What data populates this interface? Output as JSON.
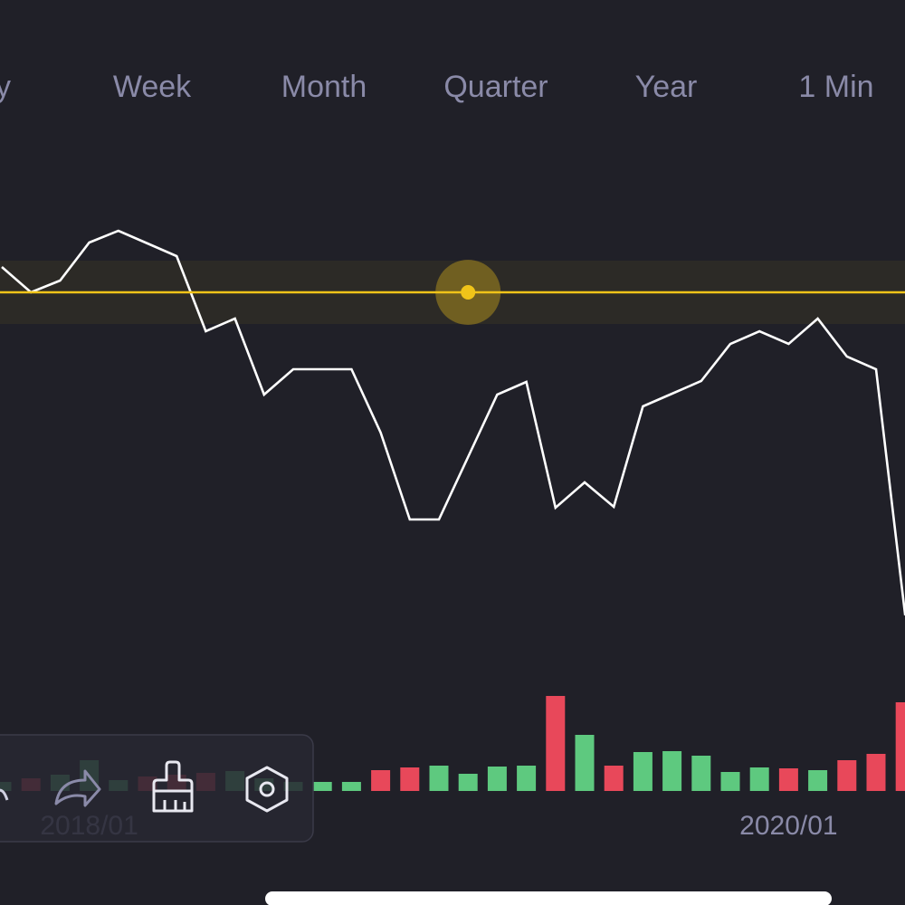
{
  "tabs": [
    "y",
    "Week",
    "Month",
    "Quarter",
    "Year",
    "1 Min"
  ],
  "chart_data": {
    "type": "line",
    "categories": [
      null,
      null,
      null,
      "2018/01",
      null,
      null,
      null,
      null,
      null,
      null,
      null,
      null,
      null,
      null,
      null,
      null,
      null,
      null,
      null,
      null,
      null,
      null,
      null,
      null,
      null,
      null,
      null,
      "2020/01",
      null,
      null,
      null,
      null
    ],
    "values": [
      405,
      377,
      390,
      432,
      445,
      431,
      417,
      334,
      348,
      264,
      292,
      292,
      292,
      222,
      126,
      126,
      195,
      264,
      278,
      139,
      167,
      140,
      251,
      265,
      279,
      320,
      334,
      320,
      348,
      306,
      292,
      20
    ],
    "color": "#ffffff",
    "ylim": [
      0,
      500
    ],
    "crosshair": {
      "index": 16,
      "value": 377,
      "color": "#f0c419"
    },
    "volume": {
      "values": [
        10,
        14,
        18,
        34,
        12,
        16,
        18,
        20,
        22,
        14,
        10,
        10,
        10,
        23,
        26,
        28,
        19,
        27,
        28,
        105,
        62,
        28,
        43,
        44,
        39,
        21,
        26,
        25,
        23,
        34,
        41,
        98
      ],
      "colors": [
        "#5ec97f",
        "#e8485a",
        "#5ec97f",
        "#5ec97f",
        "#5ec97f",
        "#e8485a",
        "#e8485a",
        "#e8485a",
        "#5ec97f",
        "#5ec97f",
        "#5ec97f",
        "#5ec97f",
        "#5ec97f",
        "#e8485a",
        "#e8485a",
        "#5ec97f",
        "#5ec97f",
        "#5ec97f",
        "#5ec97f",
        "#e8485a",
        "#5ec97f",
        "#e8485a",
        "#5ec97f",
        "#5ec97f",
        "#5ec97f",
        "#5ec97f",
        "#5ec97f",
        "#e8485a",
        "#5ec97f",
        "#e8485a",
        "#e8485a",
        "#e8485a"
      ],
      "ylim": [
        0,
        120
      ]
    }
  }
}
